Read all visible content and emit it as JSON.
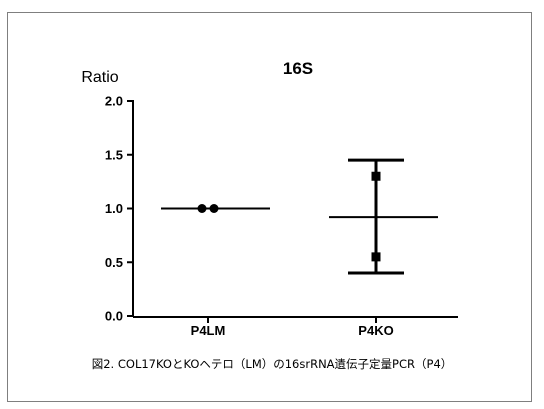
{
  "caption": "図2. COL17KOとKOヘテロ（LM）の16srRNA遺伝子定量PCR（P4）",
  "chart_data": {
    "type": "scatter",
    "title": "16S",
    "xlabel": "",
    "ylabel": "Ratio",
    "ylim": [
      0.0,
      2.0
    ],
    "yticks": [
      "0.0",
      "0.5",
      "1.0",
      "1.5",
      "2.0"
    ],
    "categories": [
      "P4LM",
      "P4KO"
    ],
    "groups": [
      {
        "category": "P4LM",
        "marker": "circle",
        "points": [
          1.0,
          1.0
        ],
        "mean": 1.0
      },
      {
        "category": "P4KO",
        "marker": "square",
        "points": [
          1.3,
          0.55
        ],
        "mean": 0.92,
        "err_low": 0.4,
        "err_high": 1.45
      }
    ]
  }
}
